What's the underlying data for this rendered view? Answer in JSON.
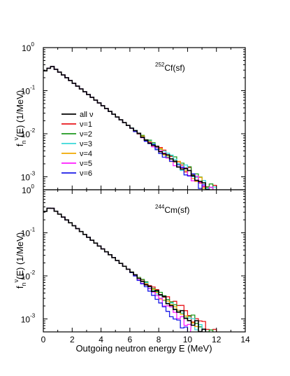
{
  "chart_data": {
    "type": "line",
    "step": true,
    "shared_x": {
      "label": "Outgoing neutron energy E (MeV)",
      "range": [
        0,
        14
      ],
      "ticks": [
        0,
        2,
        4,
        6,
        8,
        10,
        12,
        14
      ],
      "tick_labels": [
        "0",
        "2",
        "4",
        "6",
        "8",
        "10",
        "12",
        "14"
      ]
    },
    "legend": {
      "placement": "left-middle (top panel)",
      "entries": [
        {
          "text": "all ν",
          "color": "#000000"
        },
        {
          "text": "ν=1",
          "color": "#e8161b"
        },
        {
          "text": "ν=2",
          "color": "#1e9a1e"
        },
        {
          "text": "ν=3",
          "color": "#38d8d8"
        },
        {
          "text": "ν=4",
          "color": "#f0a800"
        },
        {
          "text": "ν=5",
          "color": "#ff1aff"
        },
        {
          "text": "ν=6",
          "color": "#1a1ae8"
        }
      ]
    },
    "panels": [
      {
        "annotation": {
          "sup": "252",
          "base": "Cf(sf)"
        },
        "ylabel": {
          "main": "f",
          "sub": "n",
          "sup": "ν",
          "rest": "(E) (1/MeV)"
        },
        "y_scale": "log",
        "ylim": [
          0.0005,
          1
        ],
        "ytick_labels": [
          {
            "base": "10",
            "exp": "0"
          },
          {
            "base": "10",
            "exp": "-1"
          },
          {
            "base": "10",
            "exp": "-2"
          },
          {
            "base": "10",
            "exp": "-3"
          }
        ],
        "peak": {
          "x": 0.6,
          "y": 0.37
        },
        "slope": 0.6,
        "cutoffs": [
          13.3,
          12.8,
          12.7,
          12.6,
          12.4,
          12.2,
          11.7
        ],
        "factors": [
          1.0,
          1.1,
          1.1,
          1.07,
          1.03,
          0.98,
          0.92
        ],
        "series": [
          {
            "name": "all ν",
            "color": "#000000"
          },
          {
            "name": "ν=1",
            "color": "#e8161b"
          },
          {
            "name": "ν=2",
            "color": "#1e9a1e"
          },
          {
            "name": "ν=3",
            "color": "#38d8d8"
          },
          {
            "name": "ν=4",
            "color": "#f0a800"
          },
          {
            "name": "ν=5",
            "color": "#ff1aff"
          },
          {
            "name": "ν=6",
            "color": "#1a1ae8"
          }
        ]
      },
      {
        "annotation": {
          "sup": "244",
          "base": "Cm(sf)"
        },
        "ylabel": {
          "main": "f",
          "sub": "n",
          "sup": "ν",
          "rest": "(E) (1/MeV)"
        },
        "y_scale": "log",
        "ylim": [
          0.0005,
          1
        ],
        "ytick_labels": [
          {
            "base": "10",
            "exp": "0"
          },
          {
            "base": "10",
            "exp": "-1"
          },
          {
            "base": "10",
            "exp": "-2"
          },
          {
            "base": "10",
            "exp": "-3"
          }
        ],
        "peak": {
          "x": 0.5,
          "y": 0.4
        },
        "slope": 0.62,
        "cutoffs": [
          12.6,
          13.0,
          12.0,
          11.4,
          10.8,
          10.2,
          10.0
        ],
        "factors": [
          1.0,
          1.18,
          1.1,
          0.98,
          0.85,
          0.7,
          0.55
        ],
        "series": [
          {
            "name": "all ν",
            "color": "#000000"
          },
          {
            "name": "ν=1",
            "color": "#e8161b"
          },
          {
            "name": "ν=2",
            "color": "#1e9a1e"
          },
          {
            "name": "ν=3",
            "color": "#38d8d8"
          },
          {
            "name": "ν=4",
            "color": "#f0a800"
          },
          {
            "name": "ν=5",
            "color": "#ff1aff"
          },
          {
            "name": "ν=6",
            "color": "#1a1ae8"
          }
        ]
      }
    ]
  }
}
